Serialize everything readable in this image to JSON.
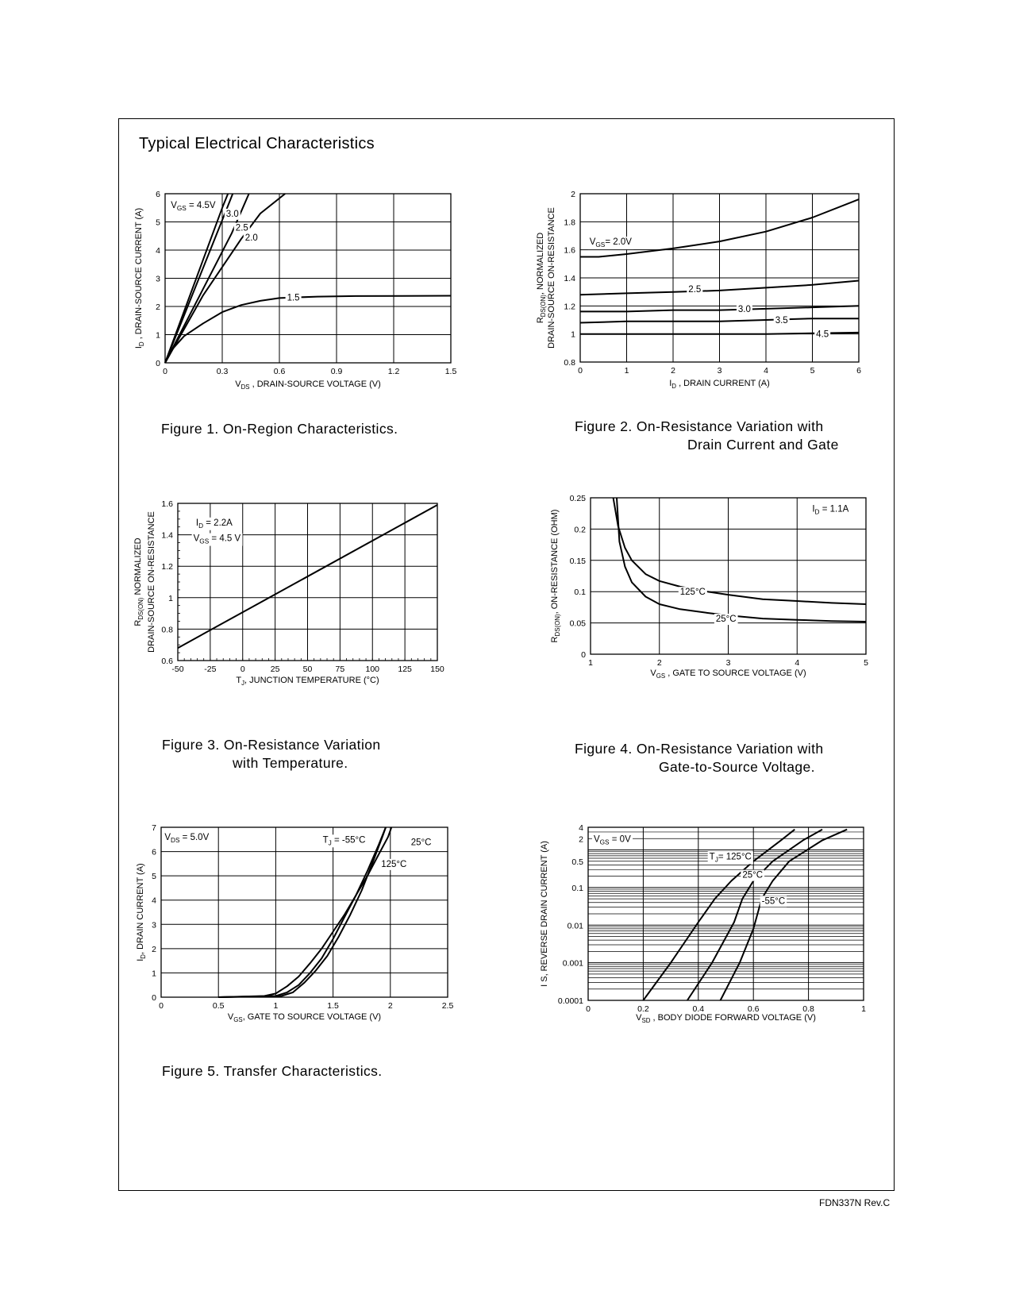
{
  "page": {
    "title": "Typical Electrical Characteristics",
    "footer": "FDN337N Rev.C"
  },
  "captions": {
    "fig1": "Figure 1. On-Region Characteristics.",
    "fig2_l1": "Figure 2. On-Resistance Variation with",
    "fig2_l2": "Drain Current and Gate",
    "fig3_l1": "Figure 3. On-Resistance Variation",
    "fig3_l2": "with Temperature.",
    "fig4_l1": "Figure 4. On-Resistance Variation with",
    "fig4_l2": "Gate-to-Source Voltage.",
    "fig5": "Figure  5. Transfer Characteristics."
  },
  "chart_data": [
    {
      "id": "fig1",
      "type": "line",
      "xlim": [
        0,
        1.5
      ],
      "ylim": [
        0,
        6
      ],
      "xticks": [
        0,
        0.3,
        0.6,
        0.9,
        1.2,
        1.5
      ],
      "xtick_labels": [
        "0",
        "0.3",
        "0.6",
        "0.9",
        "1.2",
        "1.5"
      ],
      "yticks": [
        0,
        1,
        2,
        3,
        4,
        5,
        6
      ],
      "ytick_labels": [
        "0",
        "1",
        "2",
        "3",
        "4",
        "5",
        "6"
      ],
      "xlabel": {
        "sym": "V",
        "sub": "DS",
        "rest": " , DRAIN-SOURCE VOLTAGE (V)"
      },
      "ylabel": {
        "sym": "I",
        "sub": "D",
        "rest": " , DRAIN-SOURCE CURRENT (A)"
      },
      "grid": true,
      "series": [
        {
          "name": "V GS = 4.5V",
          "points": [
            [
              0,
              0
            ],
            [
              0.3,
              5.5
            ],
            [
              0.33,
              6
            ]
          ]
        },
        {
          "name": "3.0",
          "points": [
            [
              0,
              0
            ],
            [
              0.32,
              5.4
            ],
            [
              0.355,
              6
            ]
          ]
        },
        {
          "name": "2.5",
          "points": [
            [
              0,
              0
            ],
            [
              0.35,
              4.6
            ],
            [
              0.44,
              6
            ]
          ]
        },
        {
          "name": "2.0",
          "points": [
            [
              0,
              0
            ],
            [
              0.2,
              2.4
            ],
            [
              0.4,
              4.4
            ],
            [
              0.5,
              5.3
            ],
            [
              0.63,
              6
            ]
          ]
        },
        {
          "name": "1.5",
          "points": [
            [
              0,
              0
            ],
            [
              0.04,
              0.5
            ],
            [
              0.1,
              0.95
            ],
            [
              0.2,
              1.4
            ],
            [
              0.3,
              1.8
            ],
            [
              0.4,
              2.05
            ],
            [
              0.5,
              2.2
            ],
            [
              0.6,
              2.3
            ],
            [
              0.8,
              2.35
            ],
            [
              1.0,
              2.37
            ],
            [
              1.5,
              2.38
            ]
          ]
        }
      ],
      "annotations": [
        {
          "text": "V",
          "sub": "GS",
          "rest": " = 4.5V",
          "x": 0.03,
          "y": 5.6
        },
        {
          "text": "3.0",
          "x": 0.32,
          "y": 5.3
        },
        {
          "text": "2.5",
          "x": 0.37,
          "y": 4.8
        },
        {
          "text": "2.0",
          "x": 0.42,
          "y": 4.45
        },
        {
          "text": "1.5",
          "x": 0.64,
          "y": 2.33
        }
      ]
    },
    {
      "id": "fig2",
      "type": "line",
      "xlim": [
        0,
        6
      ],
      "ylim": [
        0.8,
        2
      ],
      "xticks": [
        0,
        1,
        2,
        3,
        4,
        5,
        6
      ],
      "xtick_labels": [
        "0",
        "1",
        "2",
        "3",
        "4",
        "5",
        "6"
      ],
      "yticks": [
        0.8,
        1,
        1.2,
        1.4,
        1.6,
        1.8,
        2
      ],
      "ytick_labels": [
        "0.8",
        "1",
        "1.2",
        "1.4",
        "1.6",
        "1.8",
        "2"
      ],
      "xlabel": {
        "sym": "I",
        "sub": "D",
        "rest": " , DRAIN CURRENT (A)"
      },
      "ylabel": {
        "sym": "R",
        "sub": "DS(ON)",
        "rest": ", NORMALIZED",
        "line2": "DRAIN-SOURCE ON-RESISTANCE"
      },
      "grid": true,
      "series": [
        {
          "name": "V GS = 2.0V",
          "points": [
            [
              0,
              1.55
            ],
            [
              0.4,
              1.55
            ],
            [
              1,
              1.57
            ],
            [
              2,
              1.61
            ],
            [
              3,
              1.66
            ],
            [
              4,
              1.73
            ],
            [
              5,
              1.83
            ],
            [
              6,
              1.96
            ]
          ]
        },
        {
          "name": "2.5",
          "points": [
            [
              0,
              1.28
            ],
            [
              1,
              1.29
            ],
            [
              2,
              1.3
            ],
            [
              3,
              1.31
            ],
            [
              4,
              1.33
            ],
            [
              5,
              1.35
            ],
            [
              6,
              1.38
            ]
          ]
        },
        {
          "name": "3.0",
          "points": [
            [
              0,
              1.16
            ],
            [
              1,
              1.16
            ],
            [
              2,
              1.17
            ],
            [
              3,
              1.17
            ],
            [
              4,
              1.18
            ],
            [
              5,
              1.19
            ],
            [
              6,
              1.2
            ]
          ]
        },
        {
          "name": "3.5",
          "points": [
            [
              0,
              1.08
            ],
            [
              1,
              1.09
            ],
            [
              2,
              1.09
            ],
            [
              3,
              1.09
            ],
            [
              4,
              1.1
            ],
            [
              5,
              1.11
            ],
            [
              6,
              1.11
            ]
          ]
        },
        {
          "name": "4.5",
          "points": [
            [
              0,
              1.0
            ],
            [
              2,
              1.0
            ],
            [
              4,
              1.0
            ],
            [
              6,
              1.01
            ]
          ]
        }
      ],
      "annotations": [
        {
          "text": "V",
          "sub": "GS",
          "rest": "= 2.0V",
          "x": 0.2,
          "y": 1.66
        },
        {
          "text": "2.5",
          "x": 2.33,
          "y": 1.32
        },
        {
          "text": "3.0",
          "x": 3.4,
          "y": 1.18
        },
        {
          "text": "3.5",
          "x": 4.2,
          "y": 1.1
        },
        {
          "text": "4.5",
          "x": 5.08,
          "y": 1.0
        }
      ]
    },
    {
      "id": "fig3",
      "type": "line",
      "xlim": [
        -50,
        150
      ],
      "ylim": [
        0.6,
        1.6
      ],
      "xticks": [
        -50,
        -25,
        0,
        25,
        50,
        75,
        100,
        125,
        150
      ],
      "xtick_labels": [
        "-50",
        "-25",
        "0",
        "25",
        "50",
        "75",
        "100",
        "125",
        "150"
      ],
      "yticks": [
        0.6,
        0.8,
        1,
        1.2,
        1.4,
        1.6
      ],
      "ytick_labels": [
        "0.6",
        "0.8",
        "1",
        "1.2",
        "1.4",
        "1.6"
      ],
      "xlabel": {
        "sym": "T",
        "sub": "J",
        "rest": ", JUNCTION TEMPERATURE (°C)"
      },
      "ylabel": {
        "sym": "R",
        "sub": "DS(ON)",
        "rest": "  NORMALIZED",
        "line2": "DRAIN-SOURCE ON-RESISTANCE"
      },
      "grid": true,
      "series": [
        {
          "name": "I D = 2.2A",
          "points": [
            [
              -50,
              0.68
            ],
            [
              150,
              1.59
            ]
          ]
        }
      ],
      "annotations": [
        {
          "text": "I",
          "sub": "D",
          "rest": " = 2.2A",
          "x": -36,
          "y": 1.48
        },
        {
          "text": "V",
          "sub": "GS",
          "rest": " = 4.5 V",
          "x": -38,
          "y": 1.38
        }
      ]
    },
    {
      "id": "fig4",
      "type": "line",
      "xlim": [
        1,
        5
      ],
      "ylim": [
        0,
        0.25
      ],
      "xticks": [
        1,
        2,
        3,
        4,
        5
      ],
      "xtick_labels": [
        "1",
        "2",
        "3",
        "4",
        "5"
      ],
      "yticks": [
        0,
        0.05,
        0.1,
        0.15,
        0.2,
        0.25
      ],
      "ytick_labels": [
        "0",
        "0.05",
        "0.1",
        "0.15",
        "0.2",
        "0.25"
      ],
      "xlabel": {
        "sym": "V",
        "sub": "GS",
        "rest": " , GATE TO SOURCE VOLTAGE (V)"
      },
      "ylabel": {
        "sym": "R",
        "sub": "DS(ON)",
        "rest": ", ON-RESISTANCE (OHM)"
      },
      "grid": true,
      "series": [
        {
          "name": "125°C",
          "points": [
            [
              1.33,
              0.25
            ],
            [
              1.4,
              0.205
            ],
            [
              1.5,
              0.17
            ],
            [
              1.6,
              0.15
            ],
            [
              1.8,
              0.128
            ],
            [
              2.0,
              0.117
            ],
            [
              2.3,
              0.108
            ],
            [
              2.7,
              0.1
            ],
            [
              3.0,
              0.095
            ],
            [
              3.5,
              0.088
            ],
            [
              4.0,
              0.085
            ],
            [
              4.5,
              0.082
            ],
            [
              5,
              0.08
            ]
          ]
        },
        {
          "name": "25°C",
          "points": [
            [
              1.38,
              0.25
            ],
            [
              1.42,
              0.18
            ],
            [
              1.5,
              0.14
            ],
            [
              1.6,
              0.115
            ],
            [
              1.8,
              0.092
            ],
            [
              2.0,
              0.08
            ],
            [
              2.3,
              0.072
            ],
            [
              2.7,
              0.066
            ],
            [
              3.0,
              0.062
            ],
            [
              3.5,
              0.057
            ],
            [
              4.0,
              0.055
            ],
            [
              4.5,
              0.053
            ],
            [
              5,
              0.052
            ]
          ]
        }
      ],
      "annotations": [
        {
          "text": "I",
          "sub": "D",
          "rest": " = 1.1A",
          "x": 4.22,
          "y": 0.233
        },
        {
          "text": "125°C",
          "x": 2.3,
          "y": 0.1
        },
        {
          "text": "25°C",
          "x": 2.82,
          "y": 0.057
        }
      ]
    },
    {
      "id": "fig5",
      "type": "line",
      "xlim": [
        0,
        2.5
      ],
      "ylim": [
        0,
        7
      ],
      "xticks": [
        0,
        0.5,
        1,
        1.5,
        2,
        2.5
      ],
      "xtick_labels": [
        "0",
        "0.5",
        "1",
        "1.5",
        "2",
        "2.5"
      ],
      "yticks": [
        0,
        1,
        2,
        3,
        4,
        5,
        6,
        7
      ],
      "ytick_labels": [
        "0",
        "1",
        "2",
        "3",
        "4",
        "5",
        "6",
        "7"
      ],
      "xlabel": {
        "sym": "V",
        "sub": "GS",
        "rest": ", GATE TO SOURCE VOLTAGE (V)"
      },
      "ylabel": {
        "sym": "I",
        "sub": "D",
        "rest": ", DRAIN CURRENT (A)"
      },
      "grid": true,
      "series": [
        {
          "name": "-55°C",
          "points": [
            [
              0.5,
              0
            ],
            [
              0.9,
              0.05
            ],
            [
              1.0,
              0.15
            ],
            [
              1.1,
              0.45
            ],
            [
              1.2,
              0.85
            ],
            [
              1.3,
              1.4
            ],
            [
              1.4,
              2.0
            ],
            [
              1.5,
              2.7
            ],
            [
              1.6,
              3.4
            ],
            [
              1.7,
              4.2
            ],
            [
              1.8,
              5.0
            ],
            [
              1.9,
              5.9
            ],
            [
              1.98,
              6.6
            ],
            [
              2.01,
              7
            ]
          ]
        },
        {
          "name": "25°C",
          "points": [
            [
              0.5,
              0
            ],
            [
              1.0,
              0.05
            ],
            [
              1.1,
              0.2
            ],
            [
              1.2,
              0.5
            ],
            [
              1.3,
              1.0
            ],
            [
              1.4,
              1.6
            ],
            [
              1.5,
              2.4
            ],
            [
              1.6,
              3.3
            ],
            [
              1.7,
              4.2
            ],
            [
              1.8,
              5.2
            ],
            [
              1.9,
              6.3
            ],
            [
              1.96,
              7
            ]
          ]
        },
        {
          "name": "125°C",
          "points": [
            [
              0.5,
              0
            ],
            [
              1.05,
              0.05
            ],
            [
              1.15,
              0.2
            ],
            [
              1.25,
              0.6
            ],
            [
              1.35,
              1.1
            ],
            [
              1.45,
              1.7
            ],
            [
              1.55,
              2.5
            ],
            [
              1.65,
              3.4
            ],
            [
              1.75,
              4.4
            ],
            [
              1.85,
              5.6
            ],
            [
              1.93,
              6.6
            ],
            [
              1.96,
              7
            ]
          ]
        }
      ],
      "annotations": [
        {
          "text": "V",
          "sub": "DS",
          "rest": " = 5.0V",
          "x": 0.03,
          "y": 6.6
        },
        {
          "text": "T",
          "sub": "J",
          "rest": " = -55°C",
          "x": 1.41,
          "y": 6.5
        },
        {
          "text": "25°C",
          "x": 2.18,
          "y": 6.4
        },
        {
          "text": "125°C",
          "x": 1.92,
          "y": 5.5
        }
      ]
    },
    {
      "id": "fig6",
      "type": "line",
      "xlim": [
        0,
        1
      ],
      "ylim": [
        0.0001,
        4
      ],
      "yscale": "log",
      "xticks": [
        0,
        0.2,
        0.4,
        0.6,
        0.8,
        1
      ],
      "xtick_labels": [
        "0",
        "0.2",
        "0.4",
        "0.6",
        "0.8",
        "1"
      ],
      "yticks": [
        0.0001,
        0.001,
        0.01,
        0.1,
        0.5,
        2,
        4
      ],
      "ytick_labels": [
        "0.0001",
        "0.001",
        "0.01",
        "0.1",
        "0.5",
        "2",
        "4"
      ],
      "xlabel": {
        "sym": "V",
        "sub": "SD",
        "rest": " , BODY DIODE FORWARD VOLTAGE (V)"
      },
      "ylabel": {
        "sym": "I",
        "sub": "",
        "rest": " S, REVERSE DRAIN CURRENT (A)"
      },
      "grid": true,
      "series": [
        {
          "name": "T J = 125°C",
          "points": [
            [
              0.2,
              0.0001
            ],
            [
              0.3,
              0.001
            ],
            [
              0.4,
              0.012
            ],
            [
              0.46,
              0.05
            ],
            [
              0.52,
              0.15
            ],
            [
              0.6,
              0.5
            ],
            [
              0.7,
              1.8
            ],
            [
              0.75,
              3.5
            ]
          ]
        },
        {
          "name": "25°C",
          "points": [
            [
              0.36,
              0.0001
            ],
            [
              0.45,
              0.001
            ],
            [
              0.53,
              0.012
            ],
            [
              0.56,
              0.05
            ],
            [
              0.6,
              0.15
            ],
            [
              0.67,
              0.5
            ],
            [
              0.78,
              1.8
            ],
            [
              0.85,
              3.5
            ]
          ]
        },
        {
          "name": "-55°C",
          "points": [
            [
              0.48,
              0.0001
            ],
            [
              0.55,
              0.001
            ],
            [
              0.6,
              0.008
            ],
            [
              0.63,
              0.05
            ],
            [
              0.67,
              0.15
            ],
            [
              0.73,
              0.5
            ],
            [
              0.85,
              1.8
            ],
            [
              0.94,
              3.5
            ]
          ]
        }
      ],
      "annotations": [
        {
          "text": "V",
          "sub": "GS",
          "rest": " = 0V",
          "x": 0.02,
          "y": 2
        },
        {
          "text": "T",
          "sub": "J",
          "rest": "= 125°C",
          "x": 0.44,
          "y": 0.68
        },
        {
          "text": "25°C",
          "x": 0.56,
          "y": 0.22
        },
        {
          "text": "-55°C",
          "x": 0.63,
          "y": 0.045
        }
      ]
    }
  ]
}
